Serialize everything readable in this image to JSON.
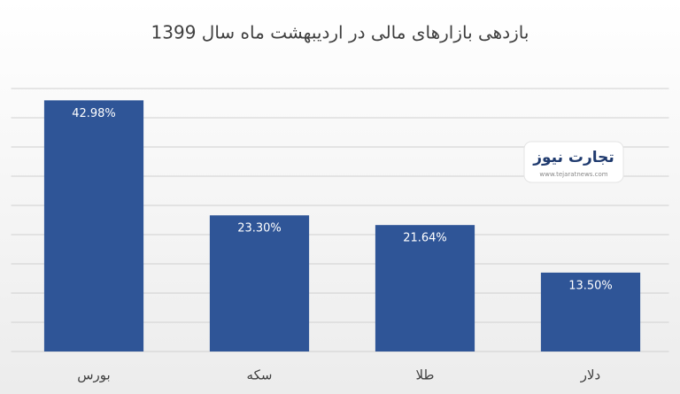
{
  "chart_data": {
    "type": "bar",
    "title": "بازدهی بازارهای مالی در اردیبهشت ماه سال 1399",
    "categories": [
      "بورس",
      "سکه",
      "طلا",
      "دلار"
    ],
    "values": [
      42.98,
      23.3,
      21.64,
      13.5
    ],
    "value_labels": [
      "42.98%",
      "23.30%",
      "21.64%",
      "13.50%"
    ],
    "color": "#2f5597",
    "ylim": [
      0,
      45
    ],
    "yticks": [
      0,
      5,
      10,
      15,
      20,
      25,
      30,
      35,
      40,
      45
    ],
    "grid": true
  },
  "watermark": {
    "name": "تجارت نیوز",
    "url": "www.tejaratnews.com"
  }
}
